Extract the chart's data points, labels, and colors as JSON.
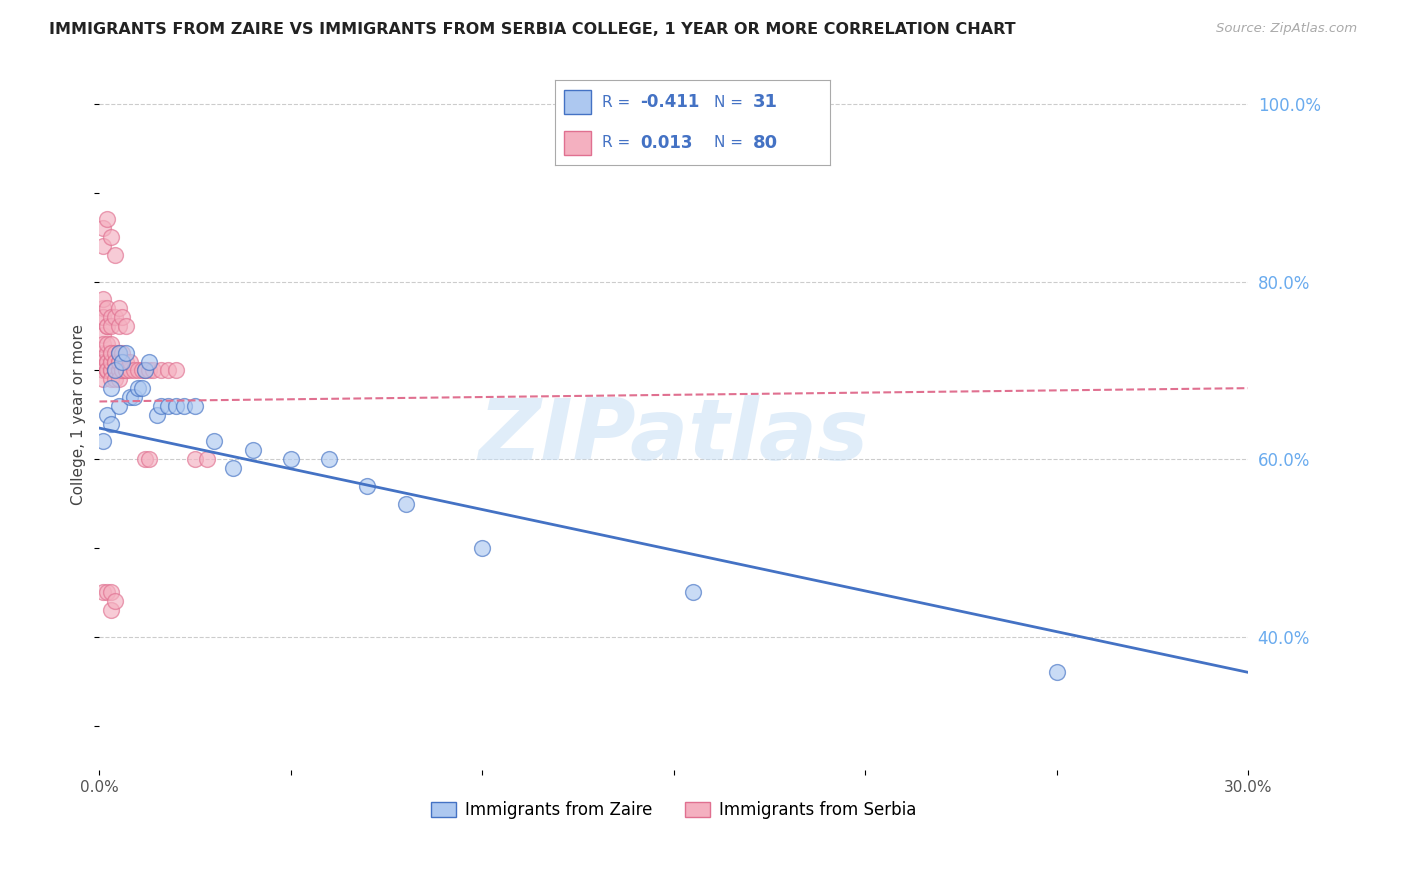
{
  "title": "IMMIGRANTS FROM ZAIRE VS IMMIGRANTS FROM SERBIA COLLEGE, 1 YEAR OR MORE CORRELATION CHART",
  "source": "Source: ZipAtlas.com",
  "ylabel": "College, 1 year or more",
  "xlim": [
    0.0,
    0.3
  ],
  "ylim": [
    0.25,
    1.05
  ],
  "xticks": [
    0.0,
    0.05,
    0.1,
    0.15,
    0.2,
    0.25,
    0.3
  ],
  "yticks_right": [
    0.4,
    0.6,
    0.8,
    1.0
  ],
  "ytick_labels_right": [
    "40.0%",
    "60.0%",
    "80.0%",
    "100.0%"
  ],
  "legend_label_zaire": "Immigrants from Zaire",
  "legend_label_serbia": "Immigrants from Serbia",
  "color_zaire_fill": "#adc8f0",
  "color_zaire_line": "#4472c4",
  "color_serbia_fill": "#f4b0c0",
  "color_serbia_line": "#e07090",
  "legend_text_color": "#4472c4",
  "background_color": "#ffffff",
  "grid_color": "#cccccc",
  "watermark": "ZIPatlas",
  "zaire_x": [
    0.001,
    0.002,
    0.003,
    0.003,
    0.004,
    0.005,
    0.005,
    0.006,
    0.007,
    0.008,
    0.009,
    0.01,
    0.011,
    0.012,
    0.013,
    0.015,
    0.016,
    0.018,
    0.02,
    0.022,
    0.025,
    0.03,
    0.035,
    0.04,
    0.05,
    0.06,
    0.07,
    0.08,
    0.1,
    0.155,
    0.25
  ],
  "zaire_y": [
    0.62,
    0.65,
    0.64,
    0.68,
    0.7,
    0.72,
    0.66,
    0.71,
    0.72,
    0.67,
    0.67,
    0.68,
    0.68,
    0.7,
    0.71,
    0.65,
    0.66,
    0.66,
    0.66,
    0.66,
    0.66,
    0.62,
    0.59,
    0.61,
    0.6,
    0.6,
    0.57,
    0.55,
    0.5,
    0.45,
    0.36
  ],
  "serbia_x": [
    0.001,
    0.001,
    0.001,
    0.001,
    0.001,
    0.001,
    0.001,
    0.001,
    0.002,
    0.002,
    0.002,
    0.002,
    0.002,
    0.002,
    0.002,
    0.002,
    0.003,
    0.003,
    0.003,
    0.003,
    0.003,
    0.003,
    0.003,
    0.003,
    0.004,
    0.004,
    0.004,
    0.004,
    0.004,
    0.004,
    0.004,
    0.005,
    0.005,
    0.005,
    0.005,
    0.005,
    0.005,
    0.006,
    0.006,
    0.006,
    0.006,
    0.007,
    0.007,
    0.007,
    0.008,
    0.008,
    0.009,
    0.01,
    0.011,
    0.012,
    0.013,
    0.014,
    0.016,
    0.018,
    0.02,
    0.001,
    0.001,
    0.002,
    0.002,
    0.003,
    0.003,
    0.004,
    0.005,
    0.005,
    0.006,
    0.007,
    0.001,
    0.001,
    0.002,
    0.003,
    0.004,
    0.012,
    0.013,
    0.025,
    0.028,
    0.001,
    0.002,
    0.003,
    0.003,
    0.004
  ],
  "serbia_y": [
    0.72,
    0.7,
    0.74,
    0.76,
    0.71,
    0.73,
    0.69,
    0.77,
    0.71,
    0.72,
    0.7,
    0.73,
    0.75,
    0.7,
    0.71,
    0.7,
    0.71,
    0.72,
    0.7,
    0.73,
    0.7,
    0.71,
    0.69,
    0.72,
    0.71,
    0.7,
    0.72,
    0.7,
    0.71,
    0.7,
    0.69,
    0.7,
    0.72,
    0.7,
    0.71,
    0.69,
    0.71,
    0.7,
    0.71,
    0.7,
    0.72,
    0.7,
    0.71,
    0.7,
    0.7,
    0.71,
    0.7,
    0.7,
    0.7,
    0.7,
    0.7,
    0.7,
    0.7,
    0.7,
    0.7,
    0.76,
    0.78,
    0.75,
    0.77,
    0.76,
    0.75,
    0.76,
    0.77,
    0.75,
    0.76,
    0.75,
    0.86,
    0.84,
    0.87,
    0.85,
    0.83,
    0.6,
    0.6,
    0.6,
    0.6,
    0.45,
    0.45,
    0.45,
    0.43,
    0.44
  ],
  "zaire_line_x0": 0.0,
  "zaire_line_x1": 0.3,
  "zaire_line_y0": 0.635,
  "zaire_line_y1": 0.36,
  "serbia_line_x0": 0.0,
  "serbia_line_x1": 0.3,
  "serbia_line_y0": 0.665,
  "serbia_line_y1": 0.68
}
